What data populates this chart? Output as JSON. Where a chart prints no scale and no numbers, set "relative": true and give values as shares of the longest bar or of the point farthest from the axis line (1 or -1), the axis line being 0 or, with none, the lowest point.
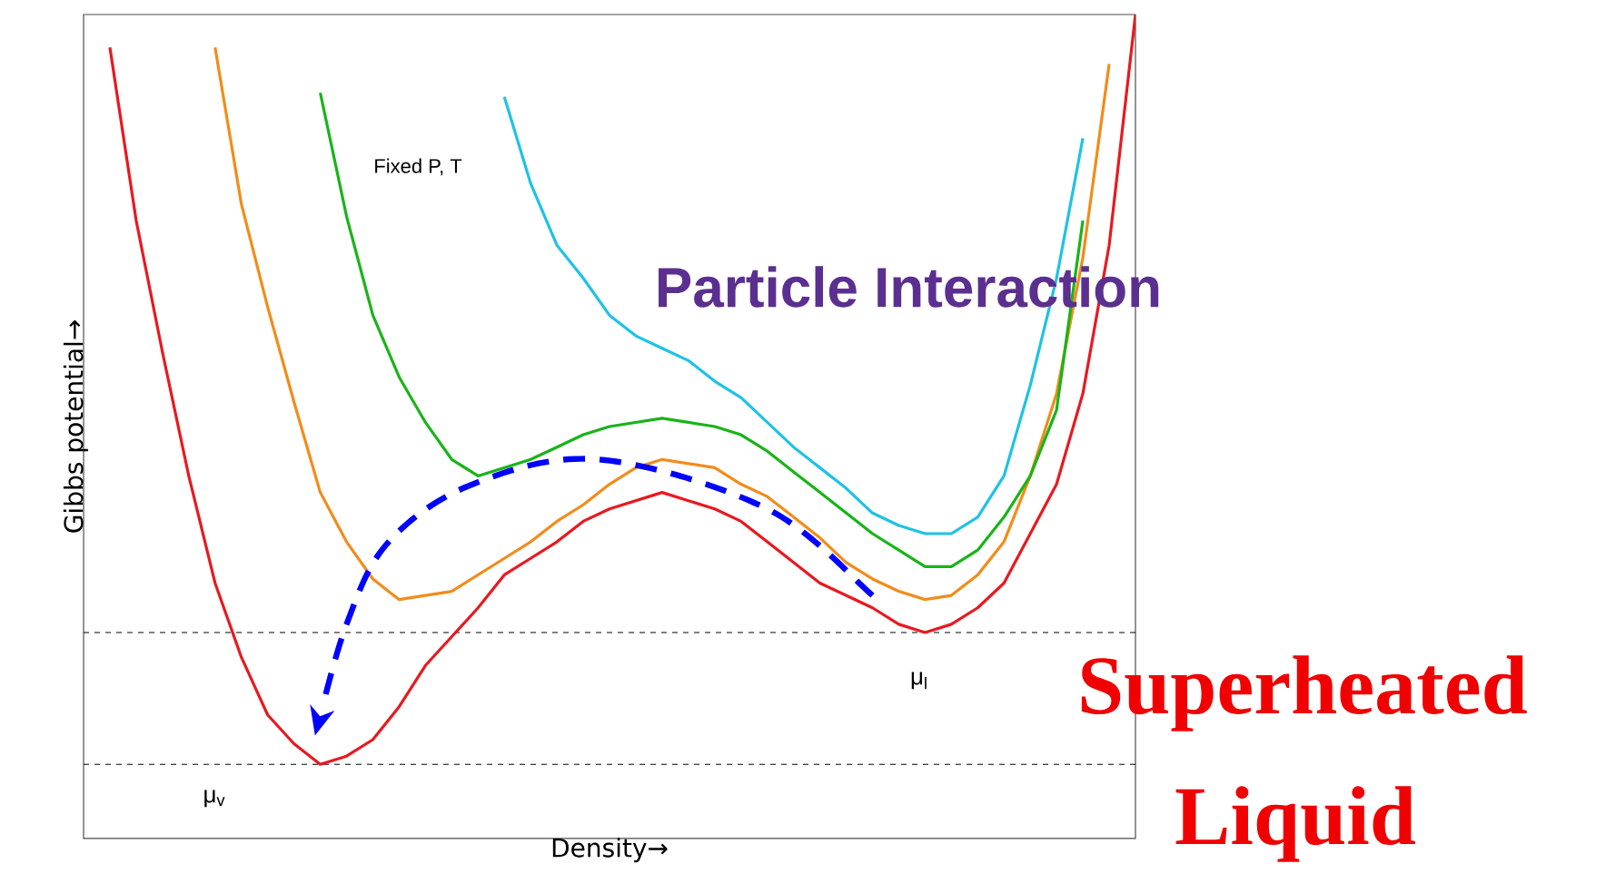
{
  "chart_data": {
    "type": "line",
    "relative": true,
    "categories": [
      null,
      null,
      null,
      null,
      null,
      null,
      null,
      null,
      null,
      null,
      null,
      null,
      null,
      null,
      null,
      null,
      null,
      null,
      null,
      null,
      null,
      null,
      null,
      null,
      null,
      null,
      null,
      null,
      null,
      null,
      null,
      null,
      null,
      null,
      null,
      null,
      null,
      null,
      null,
      null,
      null
    ],
    "xlabel": "Density→",
    "ylabel": "Gibbs potential→",
    "series": [
      {
        "color": "#e8191f",
        "values": [
          null,
          0.96,
          0.75,
          0.59,
          0.44,
          0.31,
          0.22,
          0.15,
          0.115,
          0.09,
          0.1,
          0.12,
          0.16,
          0.21,
          0.245,
          0.28,
          0.32,
          0.34,
          0.36,
          0.385,
          0.4,
          0.41,
          0.42,
          0.41,
          0.4,
          0.385,
          0.36,
          0.335,
          0.31,
          0.295,
          0.28,
          0.26,
          0.25,
          0.26,
          0.28,
          0.31,
          0.37,
          0.43,
          0.54,
          0.72,
          1.0
        ]
      },
      {
        "color": "#f28c1a",
        "values": [
          null,
          null,
          null,
          null,
          null,
          0.96,
          0.77,
          0.645,
          0.53,
          0.42,
          0.36,
          0.315,
          0.29,
          0.295,
          0.3,
          0.32,
          0.34,
          0.36,
          0.385,
          0.405,
          0.43,
          0.45,
          0.46,
          0.455,
          0.45,
          0.43,
          0.415,
          0.39,
          0.365,
          0.335,
          0.315,
          0.3,
          0.29,
          0.295,
          0.32,
          0.36,
          0.44,
          0.54,
          0.705,
          0.94,
          null
        ]
      },
      {
        "color": "#19b419",
        "values": [
          null,
          null,
          null,
          null,
          null,
          null,
          null,
          null,
          null,
          0.905,
          0.755,
          0.635,
          0.56,
          0.505,
          0.46,
          0.44,
          0.45,
          0.46,
          0.475,
          0.49,
          0.5,
          0.505,
          0.51,
          0.505,
          0.5,
          0.49,
          0.47,
          0.445,
          0.42,
          0.395,
          0.37,
          0.35,
          0.33,
          0.33,
          0.35,
          0.39,
          0.44,
          0.52,
          0.75,
          null,
          null
        ]
      },
      {
        "color": "#1ec2e6",
        "values": [
          null,
          null,
          null,
          null,
          null,
          null,
          null,
          null,
          null,
          null,
          null,
          null,
          null,
          null,
          null,
          null,
          0.9,
          0.795,
          0.72,
          0.68,
          0.635,
          0.61,
          0.595,
          0.58,
          0.555,
          0.535,
          0.505,
          0.475,
          0.45,
          0.425,
          0.395,
          0.38,
          0.37,
          0.37,
          0.39,
          0.44,
          0.55,
          0.68,
          0.85,
          null,
          null
        ]
      }
    ],
    "ref_lines": [
      {
        "axis": "y",
        "value": 0.25,
        "line_style": "dashed",
        "color": "#000000"
      },
      {
        "axis": "y",
        "value": 0.09,
        "line_style": "dashed",
        "color": "#000000"
      }
    ],
    "annotations": [
      "Fixed P, T",
      "Particle Interaction",
      "Superheated Liquid",
      "μ$_{v}$",
      "μ$_{l}$"
    ]
  }
}
